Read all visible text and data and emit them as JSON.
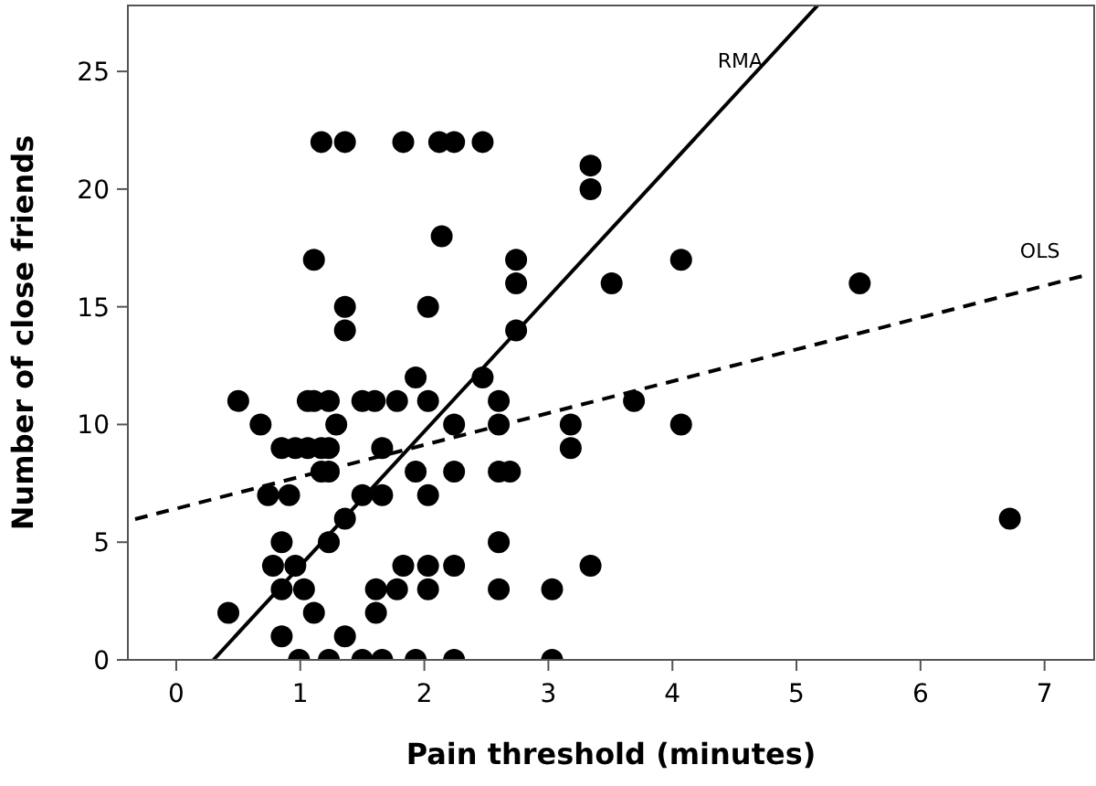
{
  "chart_data": {
    "type": "scatter",
    "xlabel": "Pain threshold (minutes)",
    "ylabel": "Number of close friends",
    "xlim": [
      -0.39,
      7.4
    ],
    "ylim": [
      0,
      27.8
    ],
    "xticks": [
      0,
      1,
      2,
      3,
      4,
      5,
      6,
      7
    ],
    "yticks": [
      0,
      5,
      10,
      15,
      20,
      25
    ],
    "grid": false,
    "series": [
      {
        "marker": "circle",
        "color": "#000000",
        "x": [
          1.17,
          1.36,
          1.83,
          2.12,
          2.24,
          2.47,
          3.34,
          3.34,
          2.14,
          1.11,
          2.74,
          4.07,
          2.74,
          3.51,
          5.51,
          1.36,
          2.03,
          1.36,
          2.74,
          1.93,
          2.47,
          0.5,
          1.06,
          1.11,
          1.23,
          1.5,
          1.6,
          1.78,
          2.03,
          2.6,
          3.69,
          0.68,
          1.29,
          2.24,
          2.6,
          3.18,
          4.07,
          0.85,
          0.96,
          1.06,
          1.17,
          1.23,
          1.66,
          3.18,
          1.17,
          1.23,
          1.93,
          2.24,
          2.6,
          2.69,
          0.74,
          0.91,
          1.5,
          1.66,
          2.03,
          1.36,
          6.72,
          0.85,
          1.23,
          2.6,
          0.78,
          0.96,
          1.83,
          2.03,
          2.24,
          3.34,
          0.85,
          1.03,
          1.61,
          1.78,
          2.03,
          2.6,
          3.03,
          0.42,
          1.11,
          1.61,
          0.85,
          1.36,
          0.99,
          1.23,
          1.5,
          1.66,
          1.93,
          2.24,
          3.03
        ],
        "values": [
          22,
          22,
          22,
          22,
          22,
          22,
          21,
          20,
          18,
          17,
          17,
          17,
          16,
          16,
          16,
          15,
          15,
          14,
          14,
          12,
          12,
          11,
          11,
          11,
          11,
          11,
          11,
          11,
          11,
          11,
          11,
          10,
          10,
          10,
          10,
          10,
          10,
          9,
          9,
          9,
          9,
          9,
          9,
          9,
          8,
          8,
          8,
          8,
          8,
          8,
          7,
          7,
          7,
          7,
          7,
          6,
          6,
          5,
          5,
          5,
          4,
          4,
          4,
          4,
          4,
          4,
          3,
          3,
          3,
          3,
          3,
          3,
          3,
          2,
          2,
          2,
          1,
          1,
          0,
          0,
          0,
          0,
          0,
          0,
          0
        ]
      },
      {
        "type": "line",
        "name": "RMA",
        "color": "#000000",
        "line_style": "solid",
        "marker": "none",
        "x": [
          0.3,
          5.17
        ],
        "values": [
          0,
          27.8
        ]
      },
      {
        "type": "line",
        "name": "OLS",
        "color": "#000000",
        "line_style": "dashed",
        "marker": "none",
        "x": [
          -0.39,
          7.3
        ],
        "values": [
          5.9,
          16.3
        ]
      }
    ]
  }
}
